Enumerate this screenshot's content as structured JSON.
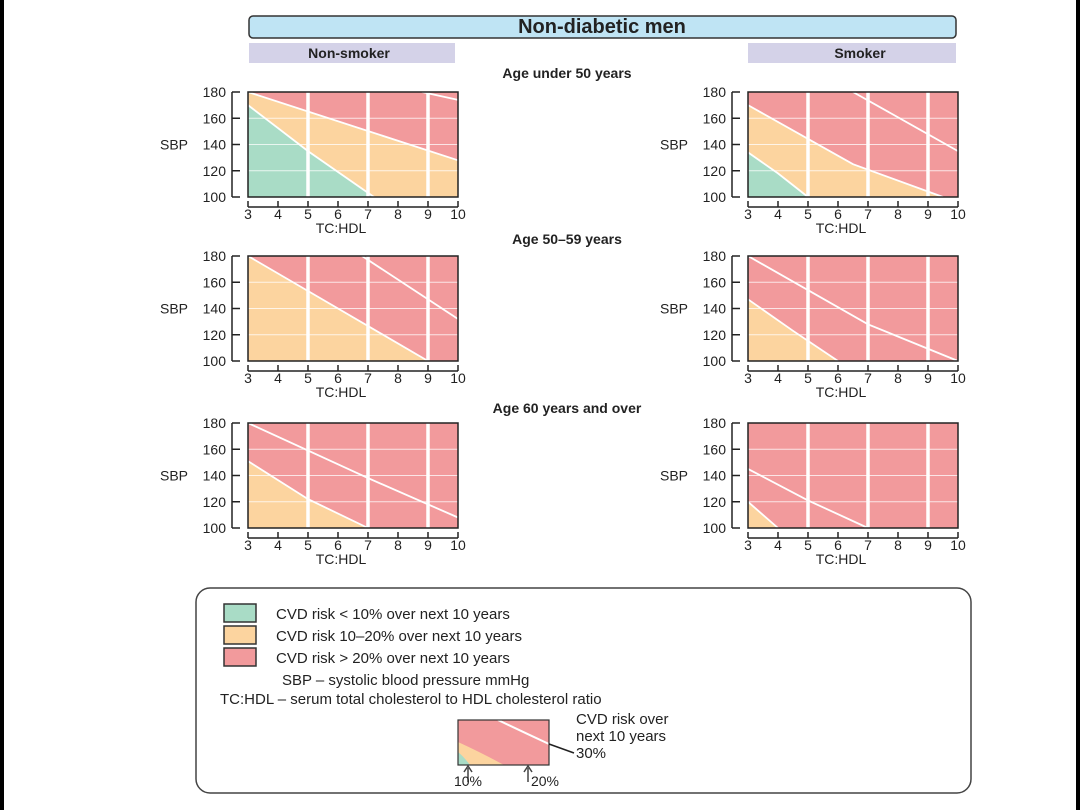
{
  "chart": {
    "title": "Non-diabetic men",
    "columns": [
      "Non-smoker",
      "Smoker"
    ],
    "rows": [
      "Age under 50 years",
      "Age  50–59 years",
      "Age 60 years and over"
    ]
  },
  "chart_data": {
    "type": "area",
    "xlabel": "TC:HDL",
    "ylabel": "SBP",
    "x_ticks": [
      3,
      4,
      5,
      6,
      7,
      8,
      9,
      10
    ],
    "y_ticks": [
      100,
      120,
      140,
      160,
      180
    ],
    "xlim": [
      3,
      10
    ],
    "ylim": [
      100,
      180
    ],
    "legend": [
      {
        "label": "CVD risk < 10% over next 10 years",
        "color": "#a9dcc6"
      },
      {
        "label": "CVD risk 10–20% over next 10 years",
        "color": "#fcd49f"
      },
      {
        "label": "CVD risk > 20% over next 10 years",
        "color": "#f29a9c"
      }
    ],
    "notes": [
      "SBP – systolic blood pressure mmHg",
      "TC:HDL – serum total cholesterol to HDL  cholesterol ratio"
    ],
    "key": {
      "note_lines": [
        "CVD risk over",
        "next 10 years",
        "30%"
      ],
      "arrow_labels": [
        "10%",
        "20%"
      ]
    },
    "panels": [
      {
        "row": "Age under 50 years",
        "column": "Non-smoker",
        "boundary_10": [
          [
            3,
            170
          ],
          [
            5,
            135
          ],
          [
            7.2,
            100
          ]
        ],
        "boundary_20": [
          [
            3,
            180
          ],
          [
            10,
            128
          ]
        ],
        "boundary_30": [
          [
            8.8,
            180
          ],
          [
            10,
            174
          ]
        ]
      },
      {
        "row": "Age under 50 years",
        "column": "Smoker",
        "boundary_10": [
          [
            3,
            134
          ],
          [
            4,
            118
          ],
          [
            5,
            100
          ]
        ],
        "boundary_20": [
          [
            3,
            170
          ],
          [
            6.5,
            125
          ],
          [
            9.5,
            100
          ]
        ],
        "boundary_30": [
          [
            6.5,
            180
          ],
          [
            10,
            135
          ]
        ]
      },
      {
        "row": "Age  50–59 years",
        "column": "Non-smoker",
        "boundary_10": null,
        "boundary_20": [
          [
            3,
            180
          ],
          [
            6,
            140
          ],
          [
            9,
            100
          ]
        ],
        "boundary_30": [
          [
            6.8,
            180
          ],
          [
            10,
            132
          ]
        ]
      },
      {
        "row": "Age  50–59 years",
        "column": "Smoker",
        "boundary_10": null,
        "boundary_20": [
          [
            3,
            147
          ],
          [
            4.5,
            123
          ],
          [
            6,
            100
          ]
        ],
        "boundary_30": [
          [
            3,
            180
          ],
          [
            7,
            128
          ],
          [
            10,
            100
          ]
        ]
      },
      {
        "row": "Age 60 years and over",
        "column": "Non-smoker",
        "boundary_10": null,
        "boundary_20": [
          [
            3,
            151
          ],
          [
            5,
            122
          ],
          [
            7,
            100
          ]
        ],
        "boundary_30": [
          [
            3,
            180
          ],
          [
            7,
            138
          ],
          [
            10,
            108
          ]
        ]
      },
      {
        "row": "Age 60 years and over",
        "column": "Smoker",
        "boundary_10": null,
        "boundary_20": [
          [
            3,
            120
          ],
          [
            4,
            100
          ]
        ],
        "boundary_30": [
          [
            3,
            145
          ],
          [
            5,
            121
          ],
          [
            7,
            100
          ]
        ]
      }
    ]
  }
}
